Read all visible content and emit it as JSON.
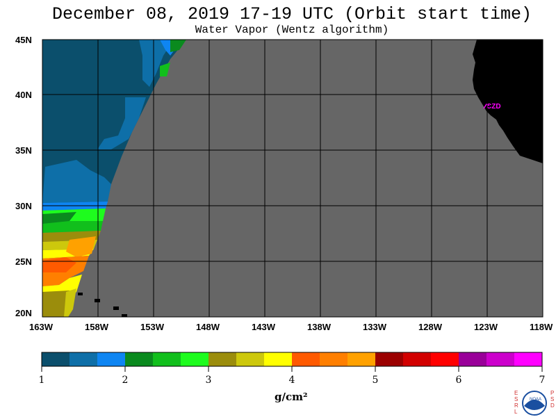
{
  "title": "December 08, 2019  17-19 UTC  (Orbit start time)",
  "subtitle": "Water Vapor (Wentz algorithm)",
  "station_label": "CZD",
  "lat_labels": [
    "45N",
    "40N",
    "35N",
    "30N",
    "25N",
    "20N"
  ],
  "lon_labels": [
    "163W",
    "158W",
    "153W",
    "148W",
    "143W",
    "138W",
    "133W",
    "128W",
    "123W",
    "118W"
  ],
  "colorbar": {
    "colors": [
      "#0b4f6c",
      "#0e6fa8",
      "#0e85f2",
      "#0a8a1e",
      "#11bf1c",
      "#1efc1e",
      "#9b8d0c",
      "#cdc80c",
      "#ffff00",
      "#ff5a00",
      "#ff7f00",
      "#ffa100",
      "#9b0000",
      "#d20000",
      "#ff0000",
      "#990099",
      "#cc00cc",
      "#ff00ff"
    ],
    "tick_labels": [
      "1",
      "2",
      "3",
      "4",
      "5",
      "6",
      "7"
    ],
    "units": "g/cm²"
  },
  "logo": {
    "left_letters": "ESRL",
    "right_letters": "PSD",
    "text": "NOAA"
  },
  "background": {
    "no_data_color": "#666666",
    "land_color": "#000000"
  }
}
